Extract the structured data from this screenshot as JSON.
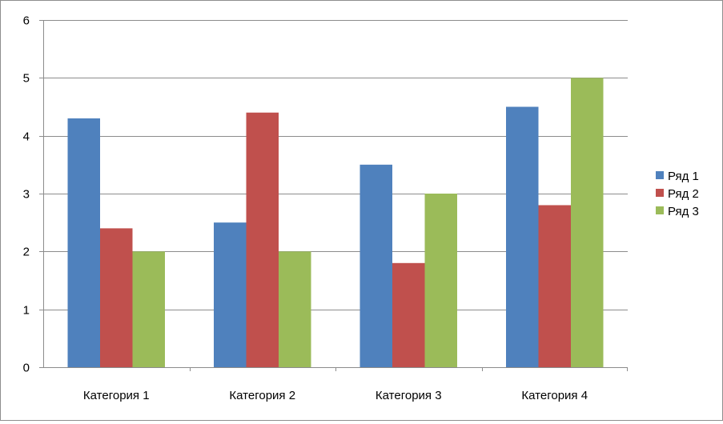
{
  "chart_data": {
    "type": "bar",
    "categories": [
      "Категория 1",
      "Категория 2",
      "Категория 3",
      "Категория 4"
    ],
    "series": [
      {
        "name": "Ряд 1",
        "color": "#4F81BD",
        "values": [
          4.3,
          2.5,
          3.5,
          4.5
        ]
      },
      {
        "name": "Ряд 2",
        "color": "#C0504D",
        "values": [
          2.4,
          4.4,
          1.8,
          2.8
        ]
      },
      {
        "name": "Ряд 3",
        "color": "#9BBB59",
        "values": [
          2.0,
          2.0,
          3.0,
          5.0
        ]
      }
    ],
    "yticks": [
      "0",
      "1",
      "2",
      "3",
      "4",
      "5",
      "6"
    ],
    "ylim": [
      0,
      6
    ],
    "grid": true,
    "legend_position": "right",
    "title": "",
    "xlabel": "",
    "ylabel": ""
  }
}
